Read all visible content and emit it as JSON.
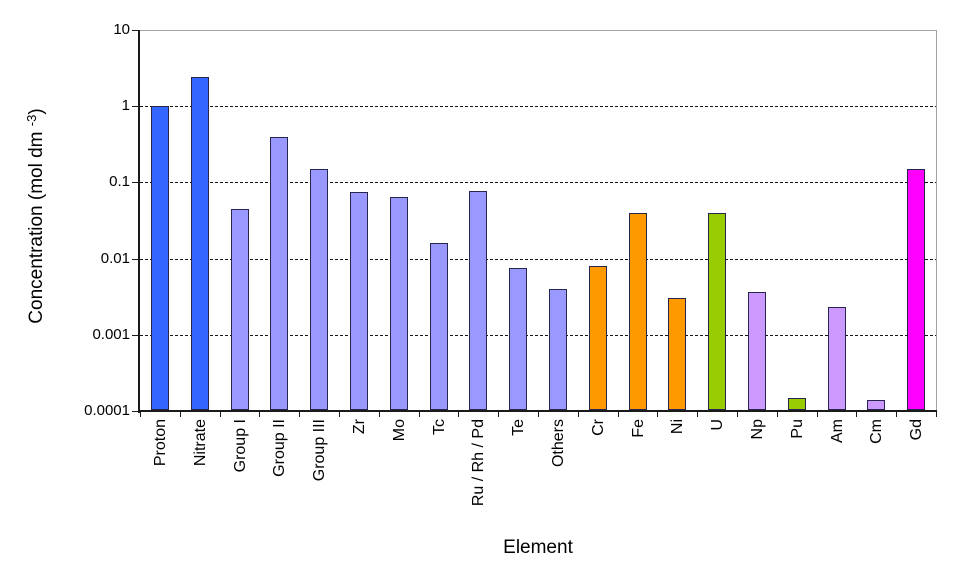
{
  "chart_data": {
    "type": "bar",
    "title": "",
    "xlabel": "Element",
    "ylabel": "Concentration (mol dm -3)",
    "ylabel_parts": {
      "main": "Concentration (mol dm ",
      "sup": "-3",
      "close": ")"
    },
    "yscale": "log",
    "ylim": [
      0.0001,
      10
    ],
    "ytick_labels": [
      "10",
      "1",
      "0.1",
      "0.01",
      "0.001",
      "0.0001"
    ],
    "ytick_values": [
      10,
      1,
      0.1,
      0.01,
      0.001,
      0.0001
    ],
    "gridline_levels": [
      1,
      0.1,
      0.01,
      0.001
    ],
    "grid_style": "horizontal dashed",
    "legend_position": "none",
    "categories": [
      "Proton",
      "Nitrate",
      "Group I",
      "Group II",
      "Group III",
      "Zr",
      "Mo",
      "Tc",
      "Ru / Rh / Pd",
      "Te",
      "Others",
      "Cr",
      "Fe",
      "Ni",
      "U",
      "Np",
      "Pu",
      "Am",
      "Cm",
      "Gd"
    ],
    "values": [
      1.0,
      2.4,
      0.045,
      0.4,
      0.15,
      0.075,
      0.065,
      0.016,
      0.078,
      0.0075,
      0.004,
      0.008,
      0.04,
      0.003,
      0.04,
      0.0037,
      0.00015,
      0.0023,
      0.00014,
      0.15
    ],
    "bar_colors": [
      "#3366FF",
      "#3366FF",
      "#9999FF",
      "#9999FF",
      "#9999FF",
      "#9999FF",
      "#9999FF",
      "#9999FF",
      "#9999FF",
      "#9999FF",
      "#9999FF",
      "#FF9900",
      "#FF9900",
      "#FF9900",
      "#99CC00",
      "#CC99FF",
      "#99CC00",
      "#CC99FF",
      "#CC99FF",
      "#FF00FF"
    ],
    "bar_border_color": "#26264d",
    "axis_color": "#1a1a1a",
    "frame_color": "#a3a3a3",
    "background_color": "#ffffff"
  }
}
